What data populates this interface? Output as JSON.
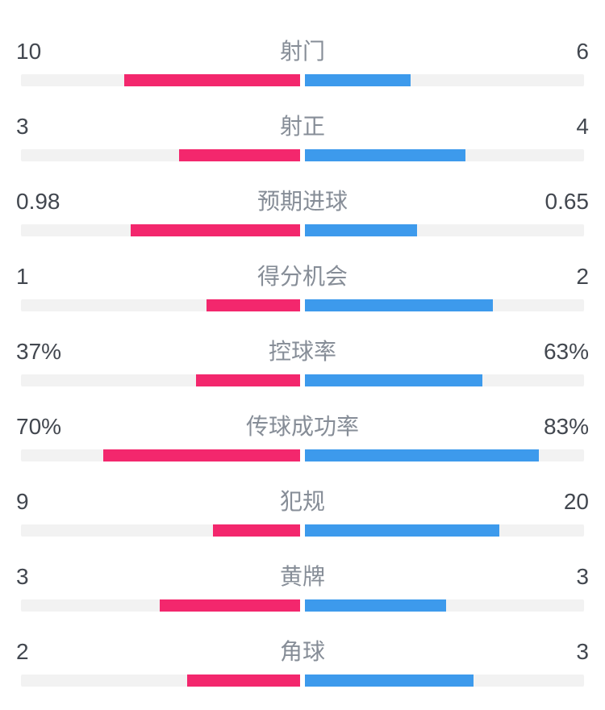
{
  "colors": {
    "home": "#F3276D",
    "away": "#3D9AEC",
    "track": "#F2F2F2",
    "center_gap": "#FFFFFF",
    "value_text": "#42474F",
    "label_text": "#868D97",
    "background": "#FFFFFF"
  },
  "rows": [
    {
      "label": "射门",
      "home": "10",
      "away": "6",
      "home_width": "31.25%",
      "away_width": "18.75%"
    },
    {
      "label": "射正",
      "home": "3",
      "away": "4",
      "home_width": "21.43%",
      "away_width": "28.57%"
    },
    {
      "label": "预期进球",
      "home": "0.98",
      "away": "0.65",
      "home_width": "30.06%",
      "away_width": "19.94%"
    },
    {
      "label": "得分机会",
      "home": "1",
      "away": "2",
      "home_width": "16.67%",
      "away_width": "33.33%"
    },
    {
      "label": "控球率",
      "home": "37%",
      "away": "63%",
      "home_width": "18.5%",
      "away_width": "31.5%"
    },
    {
      "label": "传球成功率",
      "home": "70%",
      "away": "83%",
      "home_width": "35%",
      "away_width": "41.5%"
    },
    {
      "label": "犯规",
      "home": "9",
      "away": "20",
      "home_width": "15.52%",
      "away_width": "34.48%"
    },
    {
      "label": "黄牌",
      "home": "3",
      "away": "3",
      "home_width": "25%",
      "away_width": "25%"
    },
    {
      "label": "角球",
      "home": "2",
      "away": "3",
      "home_width": "20%",
      "away_width": "30%"
    }
  ],
  "chart_data": {
    "type": "bar",
    "layout": "diverging-horizontal-from-center",
    "title": "",
    "categories": [
      "射门",
      "射正",
      "预期进球",
      "得分机会",
      "控球率",
      "传球成功率",
      "犯规",
      "黄牌",
      "角球"
    ],
    "series": [
      {
        "name": "home",
        "side": "left",
        "color": "#F3276D",
        "values": [
          10,
          3,
          0.98,
          1,
          37,
          70,
          9,
          3,
          2
        ]
      },
      {
        "name": "away",
        "side": "right",
        "color": "#3D9AEC",
        "values": [
          6,
          4,
          0.65,
          2,
          63,
          83,
          20,
          3,
          3
        ]
      }
    ],
    "percent_categories": [
      "控球率",
      "传球成功率"
    ],
    "bar_scale_rule": "count rows: width = value/(home+away) of half-track; percent rows: width = value/100 of half-track",
    "grid": false,
    "legend": false
  }
}
